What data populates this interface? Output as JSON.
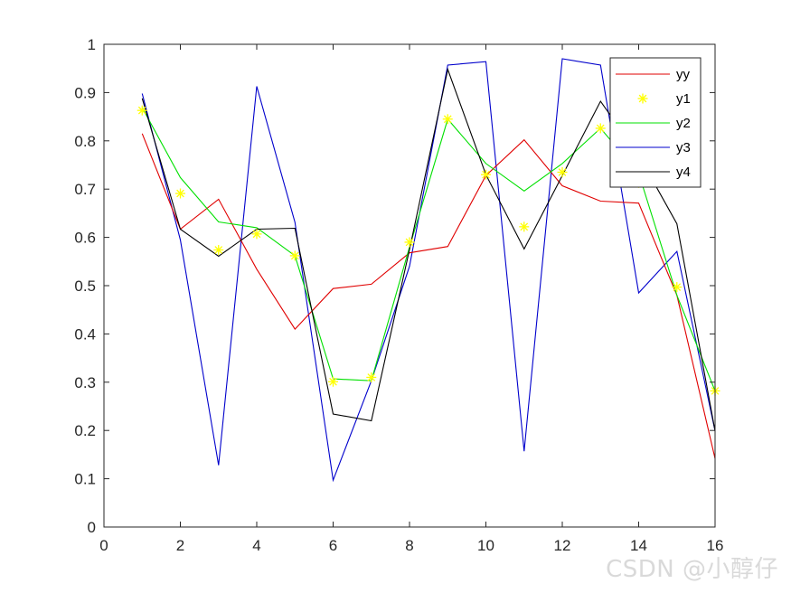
{
  "chart_data": {
    "type": "line",
    "title": "",
    "xlabel": "",
    "ylabel": "",
    "xlim": [
      0,
      16
    ],
    "ylim": [
      0,
      1
    ],
    "xticks": [
      "0",
      "2",
      "4",
      "6",
      "8",
      "10",
      "12",
      "14",
      "16"
    ],
    "yticks": [
      "0",
      "0.1",
      "0.2",
      "0.3",
      "0.4",
      "0.5",
      "0.6",
      "0.7",
      "0.8",
      "0.9",
      "1"
    ],
    "grid": false,
    "legend_position": "top-right",
    "x": [
      1,
      2,
      3,
      4,
      5,
      6,
      7,
      8,
      9,
      10,
      11,
      12,
      13,
      14,
      15,
      16
    ],
    "series": [
      {
        "name": "yy",
        "style": "line",
        "color": "#e00000",
        "values": [
          0.815,
          0.617,
          0.679,
          0.534,
          0.41,
          0.494,
          0.503,
          0.568,
          0.581,
          0.728,
          0.802,
          0.707,
          0.675,
          0.671,
          0.48,
          0.142
        ]
      },
      {
        "name": "y1",
        "style": "marker",
        "marker": "asterisk",
        "color": "#ffff00",
        "values": [
          0.863,
          0.691,
          0.574,
          0.607,
          0.562,
          0.301,
          0.31,
          0.59,
          0.845,
          0.73,
          0.622,
          0.735,
          0.826,
          0.713,
          0.497,
          0.282
        ]
      },
      {
        "name": "y2",
        "style": "line",
        "color": "#00e000",
        "values": [
          0.869,
          0.724,
          0.632,
          0.62,
          0.562,
          0.307,
          0.303,
          0.58,
          0.845,
          0.753,
          0.696,
          0.753,
          0.826,
          0.733,
          0.48,
          0.282
        ]
      },
      {
        "name": "y3",
        "style": "line",
        "color": "#0000cc",
        "values": [
          0.898,
          0.595,
          0.128,
          0.913,
          0.631,
          0.097,
          0.303,
          0.54,
          0.957,
          0.964,
          0.157,
          0.97,
          0.957,
          0.485,
          0.571,
          0.199
        ]
      },
      {
        "name": "y4",
        "style": "line",
        "color": "#000000",
        "values": [
          0.888,
          0.617,
          0.561,
          0.617,
          0.619,
          0.234,
          0.22,
          0.575,
          0.948,
          0.73,
          0.576,
          0.728,
          0.882,
          0.77,
          0.628,
          0.199
        ]
      }
    ]
  },
  "watermark": {
    "text": "CSDN @小醇仔"
  }
}
